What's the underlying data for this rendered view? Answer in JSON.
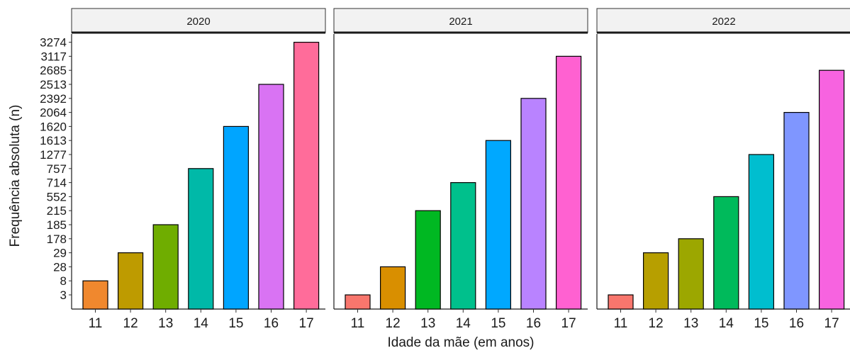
{
  "chart_data": {
    "type": "bar",
    "layout": "faceted",
    "xlabel": "Idade da mãe (em anos)",
    "ylabel": "Frequência absoluta (n)",
    "categories": [
      "11",
      "12",
      "13",
      "14",
      "15",
      "16",
      "17"
    ],
    "y_axis_type": "discrete",
    "y_ticks": [
      "3",
      "8",
      "28",
      "29",
      "178",
      "185",
      "215",
      "552",
      "714",
      "757",
      "1277",
      "1613",
      "1620",
      "2064",
      "2392",
      "2513",
      "2685",
      "3117",
      "3274"
    ],
    "grid": false,
    "legend": "none",
    "facets": [
      {
        "title": "2020",
        "values": [
          8,
          29,
          185,
          757,
          1620,
          2513,
          3274
        ],
        "colors": [
          "#F0882E",
          "#BE9B00",
          "#6FAD00",
          "#00B9A8",
          "#00A5FF",
          "#D973F3",
          "#FF6C9A"
        ]
      },
      {
        "title": "2021",
        "values": [
          3,
          28,
          215,
          714,
          1613,
          2392,
          3117
        ],
        "colors": [
          "#F8766D",
          "#D98F00",
          "#00B822",
          "#00C08C",
          "#00A8FF",
          "#B983FF",
          "#FF61D1"
        ]
      },
      {
        "title": "2022",
        "values": [
          3,
          29,
          178,
          552,
          1277,
          2064,
          2685
        ],
        "colors": [
          "#F8766D",
          "#B79F00",
          "#9CA700",
          "#00BA5B",
          "#00BECF",
          "#7F96FF",
          "#F763E0"
        ]
      }
    ]
  }
}
